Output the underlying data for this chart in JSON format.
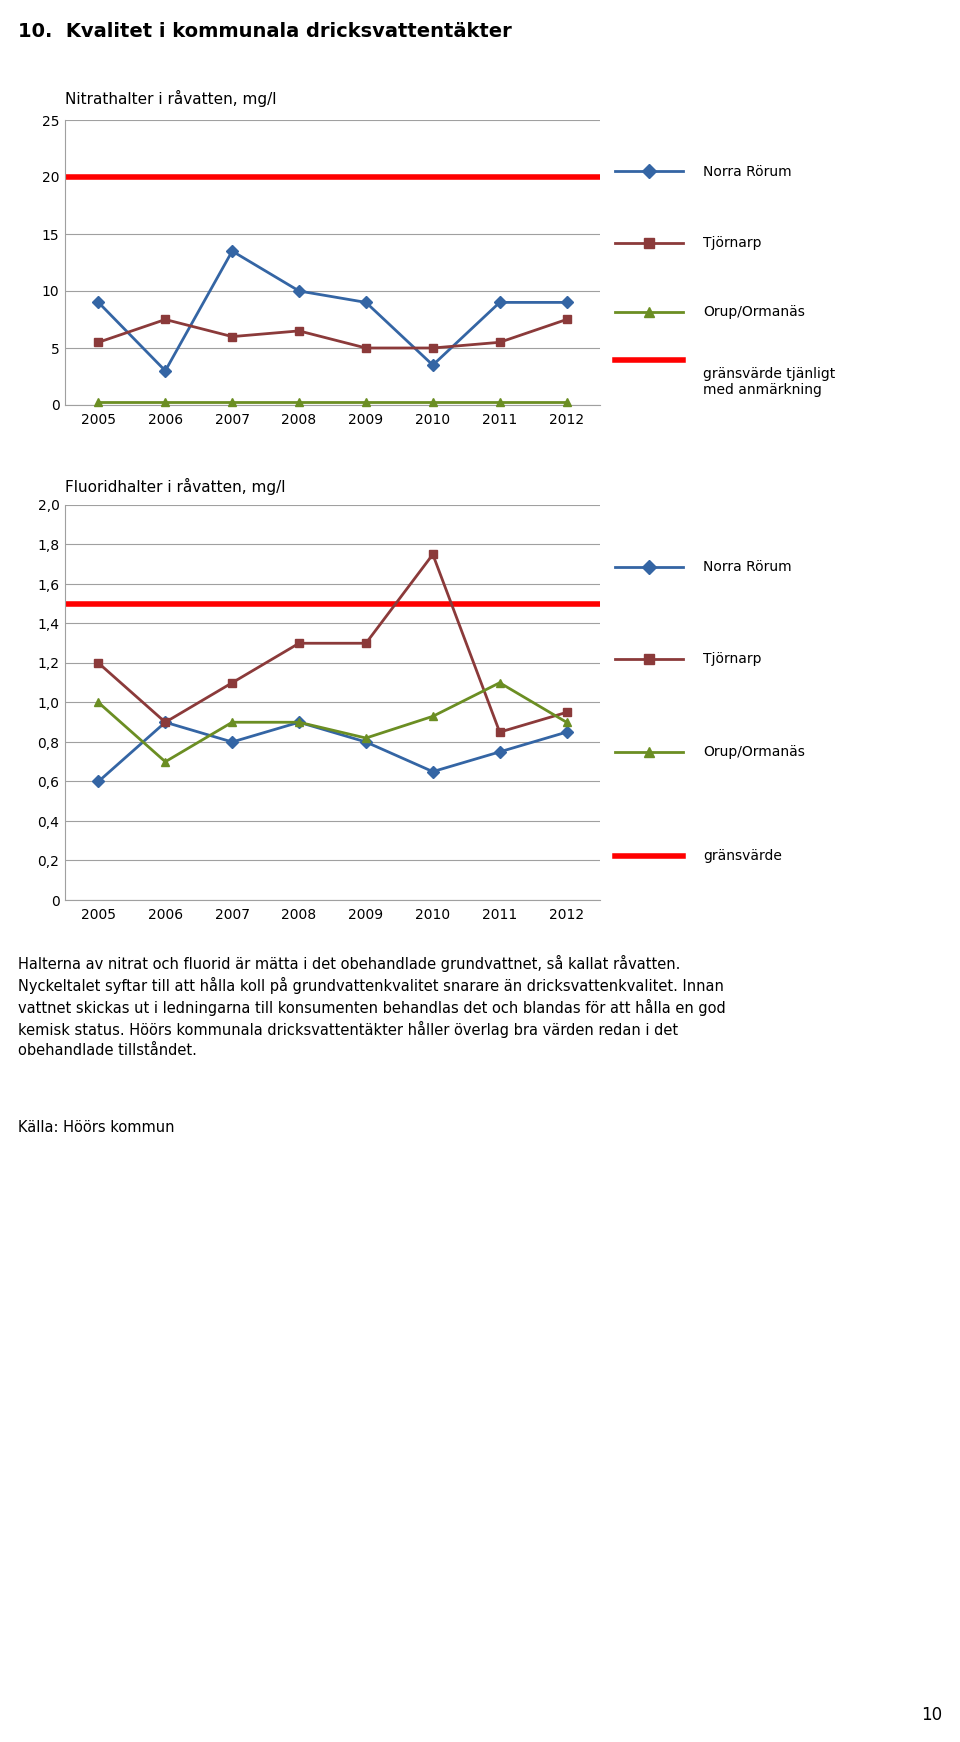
{
  "title": "10.  Kvalitet i kommunala dricksvattentäkter",
  "chart1_ylabel": "Nitrathalter i råvatten, mg/l",
  "chart2_ylabel": "Fluoridhalter i råvatten, mg/l",
  "years": [
    2005,
    2006,
    2007,
    2008,
    2009,
    2010,
    2011,
    2012
  ],
  "nitrat_norra_rorum": [
    9,
    3,
    13.5,
    10,
    9,
    3.5,
    9,
    9
  ],
  "nitrat_tjornarp": [
    5.5,
    7.5,
    6,
    6.5,
    5,
    5,
    5.5,
    7.5
  ],
  "nitrat_orup": [
    0.3,
    0.3,
    0.3,
    0.3,
    0.3,
    0.3,
    0.3,
    0.3
  ],
  "nitrat_gransvarde": 20,
  "nitrat_ylim": [
    0,
    25
  ],
  "nitrat_yticks": [
    0,
    5,
    10,
    15,
    20,
    25
  ],
  "fluorid_norra_rorum": [
    0.6,
    0.9,
    0.8,
    0.9,
    0.8,
    0.65,
    0.75,
    0.85
  ],
  "fluorid_tjornarp": [
    1.2,
    0.9,
    1.1,
    1.3,
    1.3,
    1.75,
    0.85,
    0.95
  ],
  "fluorid_orup": [
    1.0,
    0.7,
    0.9,
    0.9,
    0.82,
    0.93,
    1.1,
    0.9
  ],
  "fluorid_gransvarde": 1.5,
  "fluorid_ylim": [
    0,
    2
  ],
  "fluorid_yticks": [
    0,
    0.2,
    0.4,
    0.6,
    0.8,
    1.0,
    1.2,
    1.4,
    1.6,
    1.8,
    2.0
  ],
  "color_norra_rorum": "#3465A4",
  "color_tjornarp": "#8B3A3A",
  "color_orup": "#6B8E23",
  "color_gransvarde": "#FF0000",
  "color_grid": "#A0A0A0",
  "body_lines": [
    "Halterna av nitrat och fluorid är mätta i det obehandlade grundvattnet, så kallat råvatten.",
    "Nyckeltalet syftar till att hålla koll på grundvattenkvalitet snarare än dricksvattenkvalitet. Innan",
    "vattnet skickas ut i ledningarna till konsumenten behandlas det och blandas för att hålla en god",
    "kemisk status. Höörs kommunala dricksvattentäkter håller överlag bra värden redan i det",
    "obehandlade tillståndet."
  ],
  "source_text": "Källa: Höörs kommun",
  "page_number": "10",
  "legend1_labels": [
    "Norra Rörum",
    "Tjörnarp",
    "Orup/Ormanäs",
    "gränsvärde tjänligt\nmed anmärkning"
  ],
  "legend2_labels": [
    "Norra Rörum",
    "Tjörnarp",
    "Orup/Ormanäs",
    "gränsvärde"
  ]
}
